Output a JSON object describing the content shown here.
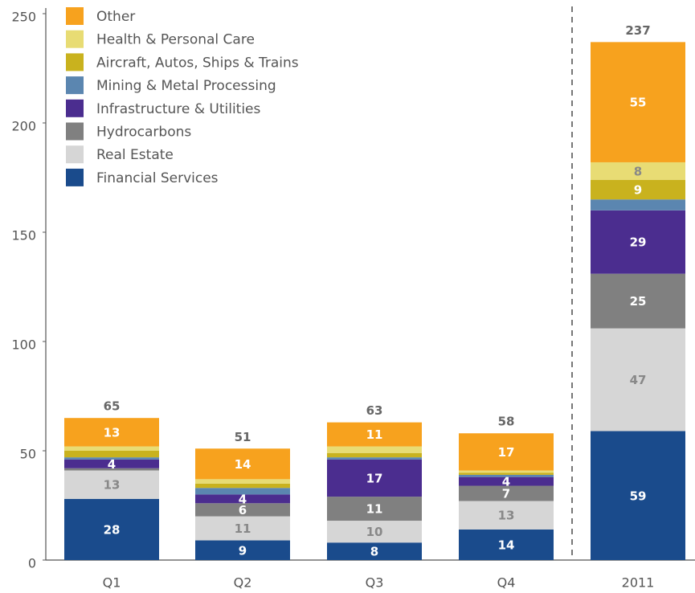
{
  "chart_data": {
    "type": "stacked_bar",
    "categories": [
      "Q1",
      "Q2",
      "Q3",
      "Q4",
      "2011"
    ],
    "ylim": [
      0,
      250
    ],
    "yticks": [
      0,
      50,
      100,
      150,
      200,
      250
    ],
    "legend": "top-left",
    "totals": [
      65,
      51,
      63,
      58,
      237
    ],
    "series": [
      {
        "name": "Financial Services",
        "color": "#1a4b8c",
        "values": [
          28,
          9,
          8,
          14,
          59
        ],
        "value_labels": [
          "28",
          "9",
          "8",
          "14",
          "59"
        ]
      },
      {
        "name": "Real Estate",
        "color": "#d6d6d6",
        "values": [
          13,
          11,
          10,
          13,
          47
        ],
        "value_labels": [
          "13",
          "11",
          "10",
          "13",
          "47"
        ]
      },
      {
        "name": "Hydrocarbons",
        "color": "#808080",
        "values": [
          1,
          6,
          11,
          7,
          25
        ],
        "value_labels": [
          null,
          "6",
          "11",
          "7",
          "25"
        ]
      },
      {
        "name": "Infrastructure & Utilities",
        "color": "#4b2d8f",
        "values": [
          4,
          4,
          17,
          4,
          29
        ],
        "value_labels": [
          "4",
          "4",
          "17",
          "4",
          "29"
        ]
      },
      {
        "name": "Mining & Metal Processing",
        "color": "#5b86b0",
        "values": [
          1,
          3,
          1,
          1,
          5
        ],
        "value_labels": [
          null,
          null,
          null,
          null,
          null
        ]
      },
      {
        "name": "Aircraft, Autos, Ships & Trains",
        "color": "#c9b21e",
        "values": [
          3,
          2,
          2,
          1,
          9
        ],
        "value_labels": [
          null,
          null,
          null,
          null,
          "9"
        ]
      },
      {
        "name": "Health & Personal Care",
        "color": "#e8dc74",
        "values": [
          2,
          2,
          3,
          1,
          8
        ],
        "value_labels": [
          null,
          null,
          null,
          null,
          "8"
        ]
      },
      {
        "name": "Other",
        "color": "#f7a21e",
        "values": [
          13,
          14,
          11,
          17,
          55
        ],
        "value_labels": [
          "13",
          "14",
          "11",
          "17",
          "55"
        ]
      }
    ]
  }
}
